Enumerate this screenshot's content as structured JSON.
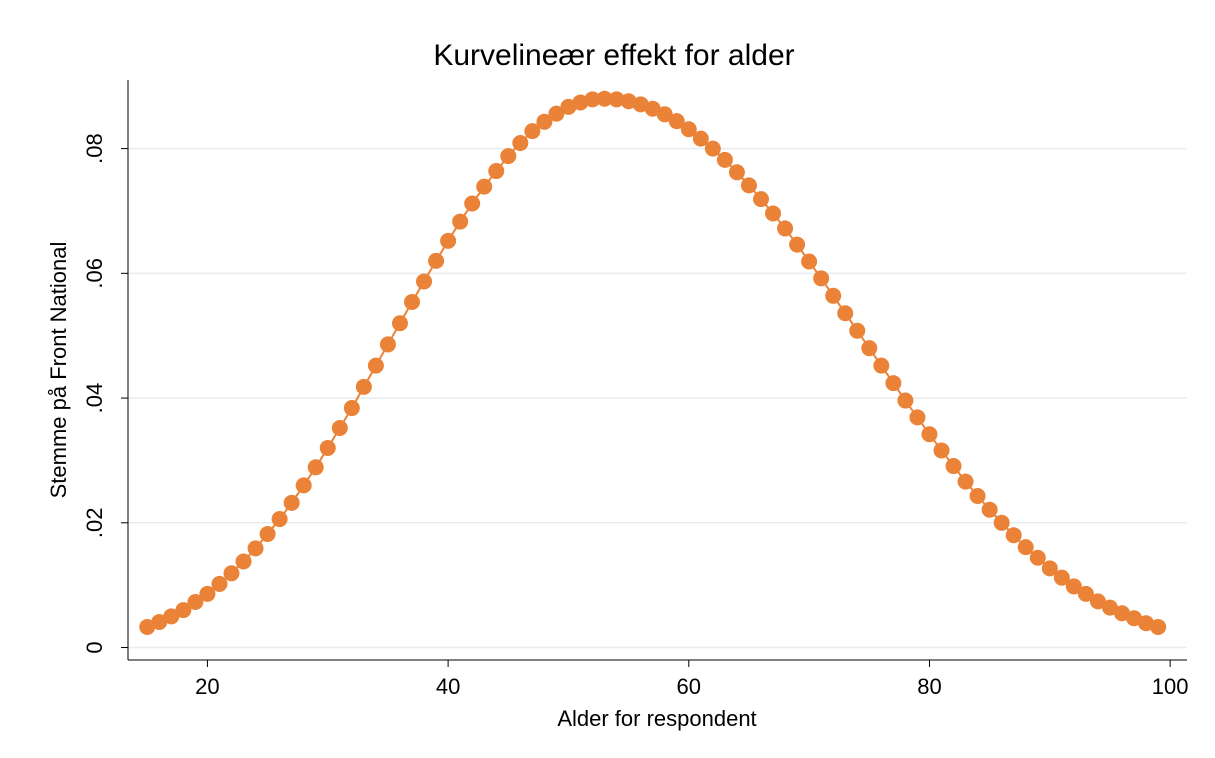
{
  "chart_data": {
    "type": "line",
    "title": "Kurvelineær effekt for alder",
    "xlabel": "Alder for respondent",
    "ylabel": "Stemme på Front National",
    "xlim": [
      13.4,
      101.4
    ],
    "ylim": [
      -0.002,
      0.091
    ],
    "xticks": [
      20,
      40,
      60,
      80,
      100
    ],
    "yticks": [
      0,
      {
        "value": 0.02,
        "label": ".02"
      },
      {
        "value": 0.04,
        "label": ".04"
      },
      {
        "value": 0.06,
        "label": ".06"
      },
      {
        "value": 0.08,
        "label": ".08"
      }
    ],
    "grid": true,
    "markers": true,
    "series": [
      {
        "color": "#ea8338",
        "x": [
          15,
          16,
          17,
          18,
          19,
          20,
          21,
          22,
          23,
          24,
          25,
          26,
          27,
          28,
          29,
          30,
          31,
          32,
          33,
          34,
          35,
          36,
          37,
          38,
          39,
          40,
          41,
          42,
          43,
          44,
          45,
          46,
          47,
          48,
          49,
          50,
          51,
          52,
          53,
          54,
          55,
          56,
          57,
          58,
          59,
          60,
          61,
          62,
          63,
          64,
          65,
          66,
          67,
          68,
          69,
          70,
          71,
          72,
          73,
          74,
          75,
          76,
          77,
          78,
          79,
          80,
          81,
          82,
          83,
          84,
          85,
          86,
          87,
          88,
          89,
          90,
          91,
          92,
          93,
          94,
          95,
          96,
          97,
          98,
          99
        ],
        "values": [
          0.0033,
          0.0041,
          0.005,
          0.006,
          0.0073,
          0.0086,
          0.0102,
          0.0119,
          0.0138,
          0.0159,
          0.0182,
          0.0206,
          0.0232,
          0.026,
          0.0289,
          0.032,
          0.0352,
          0.0384,
          0.0418,
          0.0452,
          0.0486,
          0.052,
          0.0554,
          0.0587,
          0.062,
          0.0652,
          0.0683,
          0.0712,
          0.0739,
          0.0764,
          0.0788,
          0.0809,
          0.0828,
          0.0843,
          0.0856,
          0.0867,
          0.0874,
          0.0879,
          0.088,
          0.0879,
          0.0876,
          0.0871,
          0.0864,
          0.0855,
          0.0844,
          0.0831,
          0.0816,
          0.08,
          0.0782,
          0.0762,
          0.0741,
          0.0719,
          0.0696,
          0.0672,
          0.0646,
          0.0619,
          0.0592,
          0.0564,
          0.0536,
          0.0508,
          0.048,
          0.0452,
          0.0424,
          0.0396,
          0.0369,
          0.0342,
          0.0316,
          0.0291,
          0.0266,
          0.0243,
          0.0221,
          0.02,
          0.018,
          0.0161,
          0.0144,
          0.0127,
          0.0112,
          0.0098,
          0.0086,
          0.0074,
          0.0064,
          0.0055,
          0.0047,
          0.0039,
          0.0033
        ]
      }
    ]
  }
}
